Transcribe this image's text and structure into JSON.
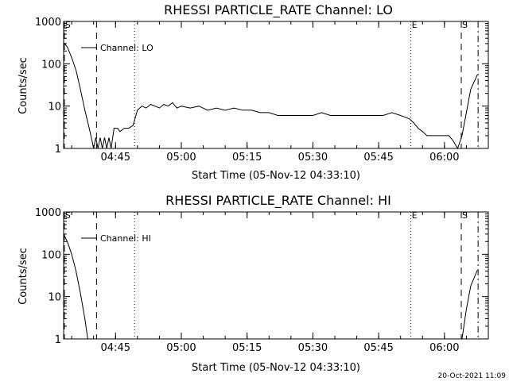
{
  "footer_timestamp": "20-Oct-2021 11:09",
  "chart_data": [
    {
      "type": "line",
      "title": "RHESSI PARTICLE_RATE Channel: LO",
      "xlabel": "Start Time (05-Nov-12 04:33:10)",
      "ylabel": "Counts/sec",
      "yscale": "log",
      "ylim": [
        1,
        1000
      ],
      "xlim": [
        "04:33:10",
        "06:10:00"
      ],
      "x_ticks": [
        "04:45",
        "05:00",
        "05:15",
        "05:30",
        "05:45",
        "06:00"
      ],
      "y_ticks": [
        "1",
        "10",
        "100",
        "1000"
      ],
      "legend": {
        "position": "top-left",
        "entries": [
          "Channel: LO"
        ]
      },
      "markers": [
        {
          "label": "S",
          "time": "04:33:20",
          "style": "dashed"
        },
        {
          "label": "",
          "time": "04:40:40",
          "style": "dashed"
        },
        {
          "label": "",
          "time": "04:49:20",
          "style": "dotted"
        },
        {
          "label": "E",
          "time": "05:52:20",
          "style": "dotted"
        },
        {
          "label": "S",
          "time": "06:03:50",
          "style": "dashed"
        },
        {
          "label": "",
          "time": "06:07:40",
          "style": "dashdot"
        }
      ],
      "series": [
        {
          "name": "Channel: LO",
          "points": [
            [
              "04:33:10",
              320
            ],
            [
              "04:34:00",
              250
            ],
            [
              "04:35:00",
              140
            ],
            [
              "04:36:00",
              70
            ],
            [
              "04:37:00",
              25
            ],
            [
              "04:38:00",
              8
            ],
            [
              "04:39:00",
              3
            ],
            [
              "04:39:40",
              1.5
            ],
            [
              "04:40:00",
              1
            ],
            [
              "04:40:30",
              1.8
            ],
            [
              "04:41:00",
              1
            ],
            [
              "04:41:30",
              1.8
            ],
            [
              "04:42:00",
              1
            ],
            [
              "04:42:30",
              1.8
            ],
            [
              "04:43:00",
              1
            ],
            [
              "04:43:30",
              1.8
            ],
            [
              "04:44:00",
              1
            ],
            [
              "04:44:40",
              3
            ],
            [
              "04:45:30",
              3
            ],
            [
              "04:46:00",
              2.5
            ],
            [
              "04:47:00",
              3
            ],
            [
              "04:48:00",
              3
            ],
            [
              "04:49:00",
              3.5
            ],
            [
              "04:50:00",
              8
            ],
            [
              "04:51:00",
              10
            ],
            [
              "04:52:00",
              9
            ],
            [
              "04:53:00",
              11
            ],
            [
              "04:54:00",
              10
            ],
            [
              "04:55:00",
              9
            ],
            [
              "04:56:00",
              11
            ],
            [
              "04:57:00",
              10
            ],
            [
              "04:58:00",
              12
            ],
            [
              "04:59:00",
              9
            ],
            [
              "05:00:00",
              10
            ],
            [
              "05:02:00",
              9
            ],
            [
              "05:04:00",
              10
            ],
            [
              "05:06:00",
              8
            ],
            [
              "05:08:00",
              9
            ],
            [
              "05:10:00",
              8
            ],
            [
              "05:12:00",
              9
            ],
            [
              "05:14:00",
              8
            ],
            [
              "05:16:00",
              8
            ],
            [
              "05:18:00",
              7
            ],
            [
              "05:20:00",
              7
            ],
            [
              "05:22:00",
              6
            ],
            [
              "05:24:00",
              6
            ],
            [
              "05:26:00",
              6
            ],
            [
              "05:28:00",
              6
            ],
            [
              "05:30:00",
              6
            ],
            [
              "05:32:00",
              7
            ],
            [
              "05:34:00",
              6
            ],
            [
              "05:36:00",
              6
            ],
            [
              "05:38:00",
              6
            ],
            [
              "05:40:00",
              6
            ],
            [
              "05:42:00",
              6
            ],
            [
              "05:44:00",
              6
            ],
            [
              "05:46:00",
              6
            ],
            [
              "05:48:00",
              7
            ],
            [
              "05:50:00",
              6
            ],
            [
              "05:52:00",
              5
            ],
            [
              "05:53:00",
              4
            ],
            [
              "05:54:00",
              3
            ],
            [
              "05:55:00",
              2.5
            ],
            [
              "05:56:00",
              2
            ],
            [
              "05:57:00",
              2
            ],
            [
              "05:58:00",
              2
            ],
            [
              "05:59:00",
              2
            ],
            [
              "06:00:00",
              2
            ],
            [
              "06:01:00",
              2
            ],
            [
              "06:02:00",
              1.5
            ],
            [
              "06:03:00",
              1
            ],
            [
              "06:04:00",
              2
            ],
            [
              "06:05:00",
              7
            ],
            [
              "06:06:00",
              25
            ],
            [
              "06:07:30",
              55
            ]
          ]
        }
      ]
    },
    {
      "type": "line",
      "title": "RHESSI PARTICLE_RATE Channel: HI",
      "xlabel": "Start Time (05-Nov-12 04:33:10)",
      "ylabel": "Counts/sec",
      "yscale": "log",
      "ylim": [
        1,
        1000
      ],
      "xlim": [
        "04:33:10",
        "06:10:00"
      ],
      "x_ticks": [
        "04:45",
        "05:00",
        "05:15",
        "05:30",
        "05:45",
        "06:00"
      ],
      "y_ticks": [
        "1",
        "10",
        "100",
        "1000"
      ],
      "legend": {
        "position": "top-left",
        "entries": [
          "Channel: HI"
        ]
      },
      "markers": [
        {
          "label": "S",
          "time": "04:33:20",
          "style": "dashed"
        },
        {
          "label": "",
          "time": "04:40:40",
          "style": "dashed"
        },
        {
          "label": "",
          "time": "04:49:20",
          "style": "dotted"
        },
        {
          "label": "E",
          "time": "05:52:20",
          "style": "dotted"
        },
        {
          "label": "S",
          "time": "06:03:50",
          "style": "dashed"
        },
        {
          "label": "",
          "time": "06:07:40",
          "style": "dashdot"
        }
      ],
      "series": [
        {
          "name": "Channel: HI",
          "points": [
            [
              "04:33:10",
              300
            ],
            [
              "04:34:00",
              200
            ],
            [
              "04:35:00",
              100
            ],
            [
              "04:36:00",
              40
            ],
            [
              "04:37:00",
              12
            ],
            [
              "04:38:00",
              3
            ],
            [
              "04:38:40",
              1
            ],
            [
              "06:04:00",
              1
            ],
            [
              "06:05:00",
              5
            ],
            [
              "06:06:00",
              18
            ],
            [
              "06:07:30",
              42
            ]
          ]
        }
      ]
    }
  ]
}
